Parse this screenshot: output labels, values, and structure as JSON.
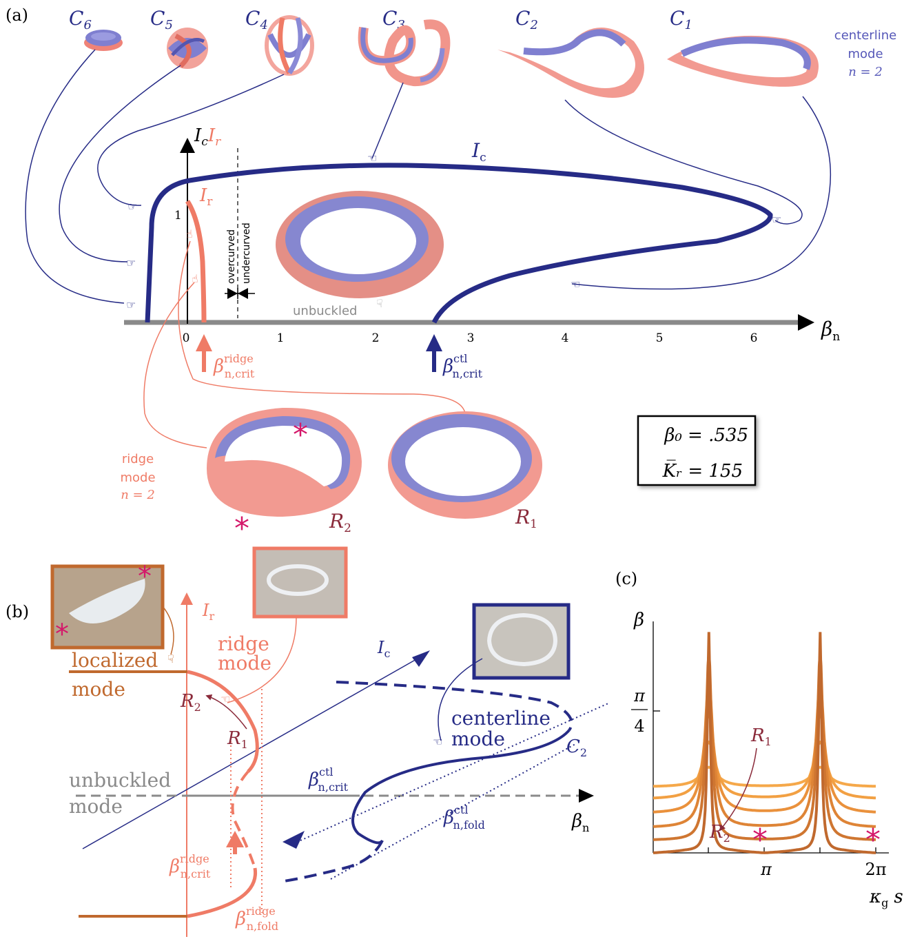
{
  "panel_labels": {
    "a": "(a)",
    "b": "(b)",
    "c": "(c)"
  },
  "colors": {
    "blue": "#262b86",
    "blue_light": "#8a8ad6",
    "salmon": "#ef7b66",
    "salmon_light": "#f4a098",
    "brown": "#c0692e",
    "gray": "#8a8a8a",
    "magenta": "#d4186a",
    "orange": "#f39b3a"
  },
  "panel_a": {
    "shapes_top": {
      "c6": "C",
      "c6_sub": "6",
      "c5": "C",
      "c5_sub": "5",
      "c4": "C",
      "c4_sub": "4",
      "c3": "C",
      "c3_sub": "3",
      "c2": "C",
      "c2_sub": "2",
      "c1": "C",
      "c1_sub": "1"
    },
    "centerline_mode": {
      "line1": "centerline",
      "line2": "mode",
      "line3": "n = 2"
    },
    "axis": {
      "y_label_c": "I",
      "y_label_c_sub": "c",
      "y_label_r": "I",
      "y_label_r_sub": "r",
      "y_tick": "1",
      "x_label": "β",
      "x_label_sub": "n",
      "x_ticks": [
        "0",
        "1",
        "2",
        "3",
        "4",
        "5",
        "6"
      ]
    },
    "curve_labels": {
      "ic": "I",
      "ic_sub": "c",
      "ir": "I",
      "ir_sub": "r"
    },
    "overcurved": "overcurved",
    "undercurved": "undercurved",
    "unbuckled": "unbuckled",
    "ridge_crit": {
      "sym": "β",
      "sup": "ridge",
      "sub": "n,crit"
    },
    "ctl_crit": {
      "sym": "β",
      "sup": "ctl",
      "sub": "n,crit"
    },
    "ridge_mode": {
      "line1": "ridge",
      "line2": "mode",
      "line3": "n = 2"
    },
    "r2": "R",
    "r2_sub": "2",
    "r1": "R",
    "r1_sub": "1",
    "params": {
      "beta0": "β₀ = .535",
      "kr": "K̅ᵣ = 155"
    }
  },
  "panel_b": {
    "ir": "I",
    "ir_sub": "r",
    "ic": "I",
    "ic_sub": "c",
    "localized": "localized",
    "localized_mode": "mode",
    "ridge": "ridge",
    "ridge_mode": "mode",
    "unbuckled": "unbuckled",
    "unbuckled_mode": "mode",
    "centerline": "centerline",
    "centerline_mode": "mode",
    "r2": "R",
    "r2_sub": "2",
    "r1": "R",
    "r1_sub": "1",
    "c2": "C",
    "c2_sub": "2",
    "bn": "β",
    "bn_sub": "n",
    "ctl_crit": {
      "sym": "β",
      "sup": "ctl",
      "sub": "n,crit"
    },
    "ctl_fold": {
      "sym": "β",
      "sup": "ctl",
      "sub": "n,fold"
    },
    "ridge_crit": {
      "sym": "β",
      "sup": "ridge",
      "sub": "n,crit"
    },
    "ridge_fold": {
      "sym": "β",
      "sup": "ridge",
      "sub": "n,fold"
    }
  },
  "panel_c": {
    "y_label": "β",
    "y_tick_num": "π",
    "y_tick_den": "4",
    "x_ticks": [
      "π",
      "2π"
    ],
    "x_label": "κ",
    "x_label_sub": "g",
    "x_label_s": "s",
    "r1": "R",
    "r1_sub": "1",
    "r2": "R",
    "r2_sub": "2",
    "chart_data": {
      "type": "line",
      "title": "",
      "xlabel": "κg s",
      "ylabel": "β",
      "xlim": [
        0,
        6.283
      ],
      "ylim": [
        0,
        1.3
      ],
      "grid": false,
      "series": [
        {
          "baseline": 0.37,
          "peak": 0.48
        },
        {
          "baseline": 0.3,
          "peak": 0.62
        },
        {
          "baseline": 0.22,
          "peak": 0.78
        },
        {
          "baseline": 0.14,
          "peak": 0.96
        },
        {
          "baseline": 0.07,
          "peak": 1.12
        },
        {
          "baseline": 0.01,
          "peak": 1.24
        }
      ]
    }
  }
}
